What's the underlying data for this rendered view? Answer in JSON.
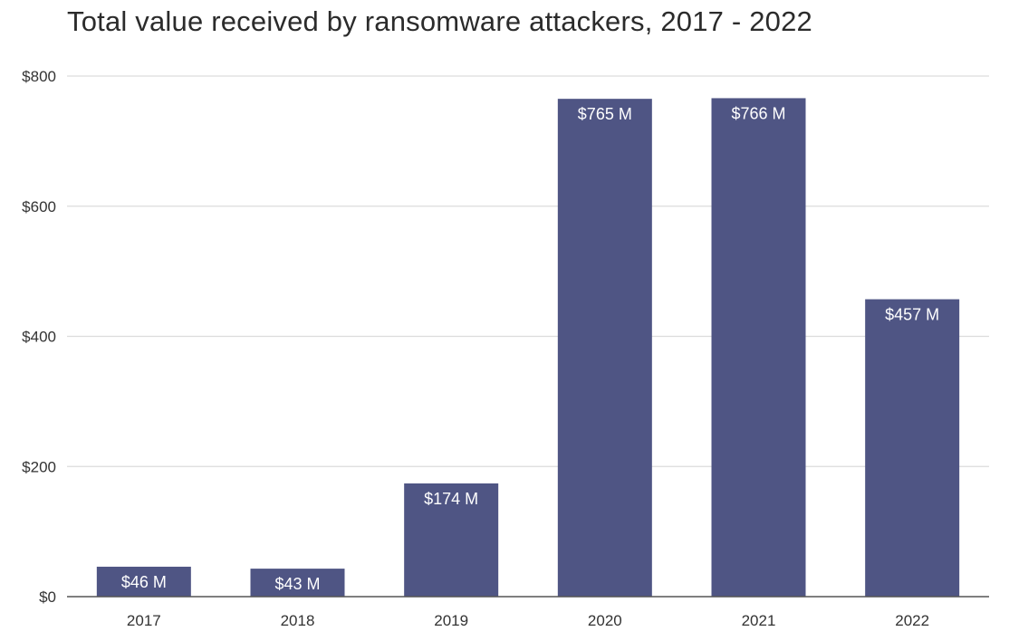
{
  "chart_data": {
    "type": "bar",
    "title": "Total value received by ransomware attackers, 2017 - 2022",
    "xlabel": "",
    "ylabel": "",
    "categories": [
      "2017",
      "2018",
      "2019",
      "2020",
      "2021",
      "2022"
    ],
    "values": [
      46,
      43,
      174,
      765,
      766,
      457
    ],
    "data_labels": [
      "$46 M",
      "$43 M",
      "$174 M",
      "$765 M",
      "$766 M",
      "$457 M"
    ],
    "ylim": [
      0,
      800
    ],
    "yticks": [
      0,
      200,
      400,
      600,
      800
    ],
    "ytick_labels": [
      "$0",
      "$200",
      "$400",
      "$600",
      "$800"
    ],
    "grid": true,
    "legend": "none",
    "bar_color": "#4f5584"
  }
}
